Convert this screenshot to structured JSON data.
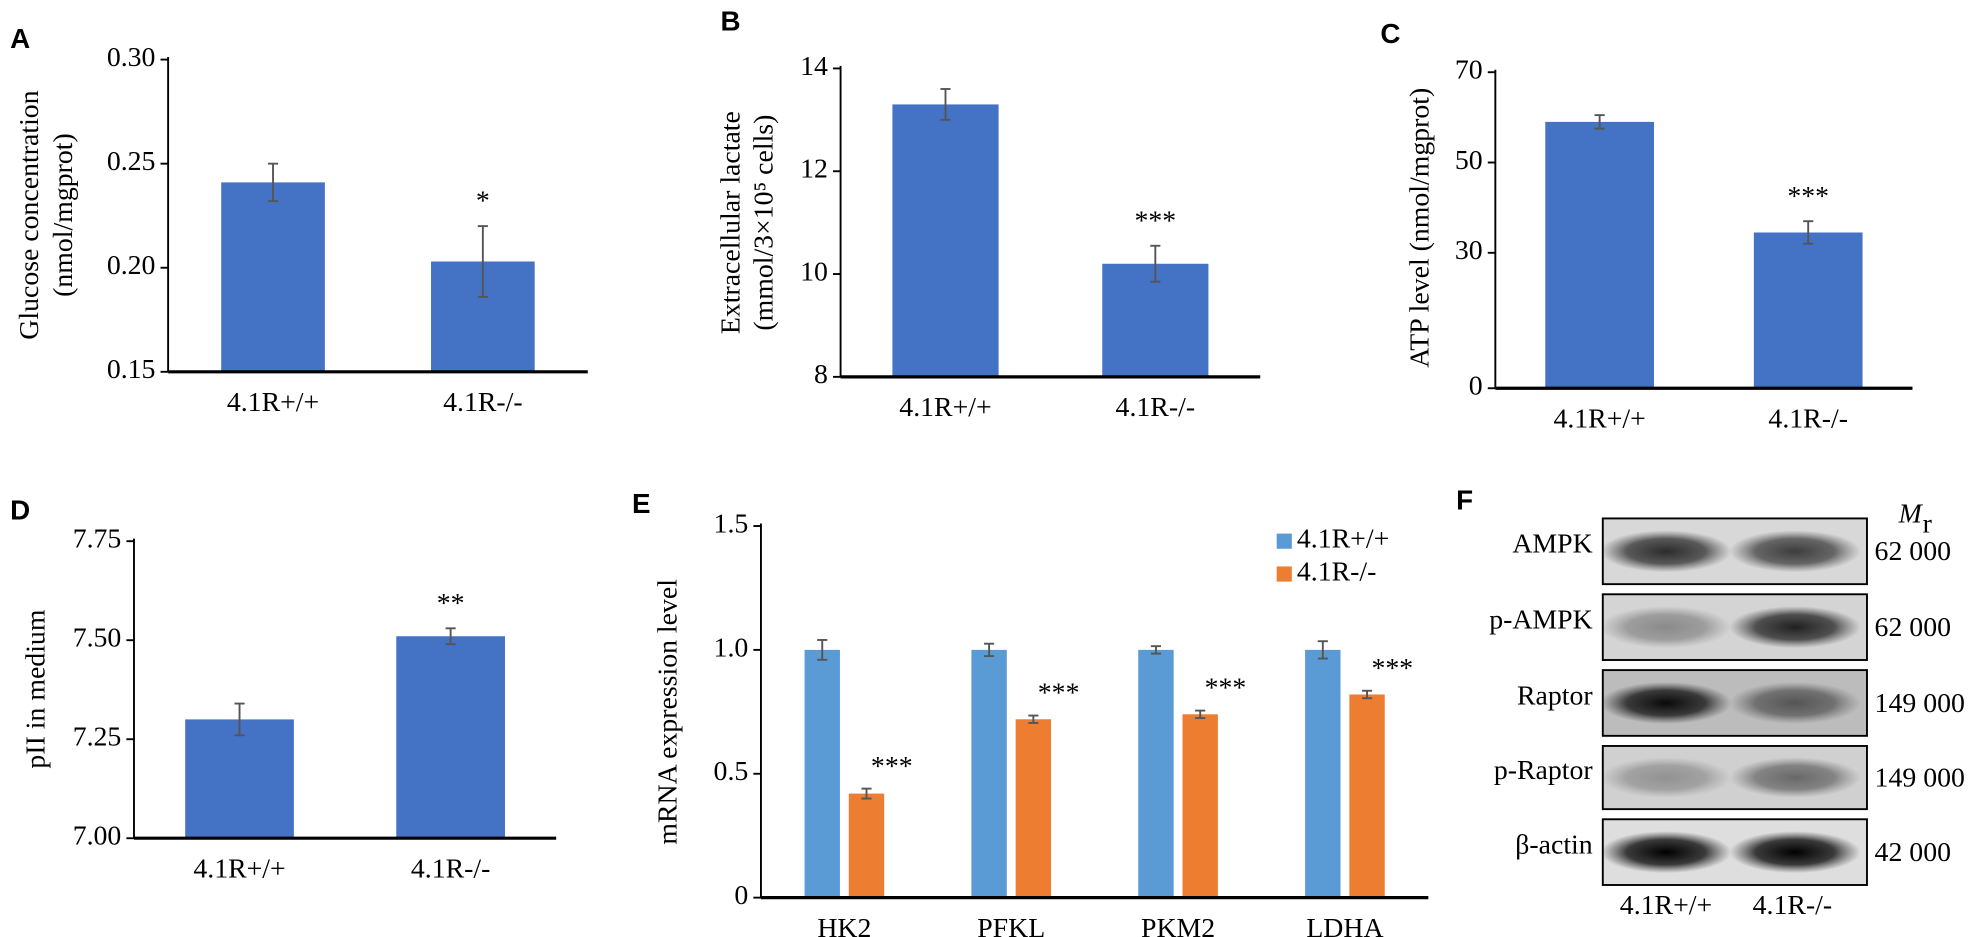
{
  "chart_data": [
    {
      "type": "bar",
      "panel": "A",
      "ylabel": [
        "Glucose concentration",
        "(nmol/mgprot)"
      ],
      "categories": [
        "4.1R+/+",
        "4.1R-/-"
      ],
      "values": [
        0.241,
        0.203
      ],
      "errors": [
        0.009,
        0.017
      ],
      "significance": [
        null,
        "*"
      ],
      "color": "#4472c4",
      "ylim": [
        0.15,
        0.3
      ],
      "yticks": [
        0.15,
        {
          "value": 0.2,
          "label": "0.20"
        },
        0.25,
        {
          "value": 0.3,
          "label": "0.30"
        }
      ]
    },
    {
      "type": "bar",
      "panel": "B",
      "ylabel": [
        "Extracellular lactate",
        "(mmol/3×10⁵ cells)"
      ],
      "categories": [
        "4.1R+/+",
        "4.1R-/-"
      ],
      "values": [
        13.3,
        10.2
      ],
      "errors": [
        0.3,
        0.35
      ],
      "significance": [
        null,
        "***"
      ],
      "color": "#4472c4",
      "ylim": [
        8,
        14
      ],
      "yticks": [
        8,
        10,
        12,
        14
      ]
    },
    {
      "type": "bar",
      "panel": "C",
      "ylabel": [
        "ATP level (nmol/mgprot)"
      ],
      "categories": [
        "4.1R+/+",
        "4.1R-/-"
      ],
      "values": [
        59,
        34.5
      ],
      "errors": [
        1.5,
        2.5
      ],
      "significance": [
        null,
        "***"
      ],
      "color": "#4472c4",
      "ylim": [
        0,
        70
      ],
      "yticks": [
        0,
        30,
        50,
        70
      ]
    },
    {
      "type": "bar",
      "panel": "D",
      "ylabel": [
        "pII in medium"
      ],
      "categories": [
        "4.1R+/+",
        "4.1R-/-"
      ],
      "values": [
        7.3,
        7.51
      ],
      "errors": [
        0.04,
        0.02
      ],
      "significance": [
        null,
        "**"
      ],
      "color": "#4472c4",
      "ylim": [
        7,
        7.75
      ],
      "yticks": [
        {
          "value": 7,
          "label": "7.00"
        },
        7.25,
        {
          "value": 7.5,
          "label": "7.50"
        },
        7.75
      ]
    },
    {
      "type": "grouped_bar",
      "panel": "E",
      "ylabel": [
        "mRNA expression level"
      ],
      "categories": [
        "HK2",
        "PFKL",
        "PKM2",
        "LDHA"
      ],
      "series": [
        {
          "name": "4.1R+/+",
          "color": "#5b9bd5",
          "values": [
            1,
            1,
            1,
            1
          ],
          "errors": [
            0.04,
            0.025,
            0.015,
            0.035
          ]
        },
        {
          "name": "4.1R-/-",
          "color": "#ed7d31",
          "values": [
            0.42,
            0.72,
            0.74,
            0.82
          ],
          "errors": [
            0.02,
            0.015,
            0.015,
            0.015
          ],
          "significance": [
            "***",
            "***",
            "***",
            "***"
          ]
        }
      ],
      "legend": "upper right",
      "ylim": [
        0,
        1.5
      ],
      "yticks": [
        0,
        0.5,
        {
          "value": 1,
          "label": "1.0"
        },
        1.5
      ]
    }
  ],
  "blot": {
    "panel": "F",
    "mr_header": "M",
    "mr_sub": "r",
    "rows": [
      {
        "label": "AMPK",
        "mr": "62 000"
      },
      {
        "label": "p-AMPK",
        "mr": "62 000"
      },
      {
        "label": "Raptor",
        "mr": "149 000"
      },
      {
        "label": "p-Raptor",
        "mr": "149 000"
      },
      {
        "label": "β-actin",
        "mr": "42 000"
      }
    ],
    "columns": [
      "4.1R+/+",
      "4.1R-/-"
    ]
  }
}
